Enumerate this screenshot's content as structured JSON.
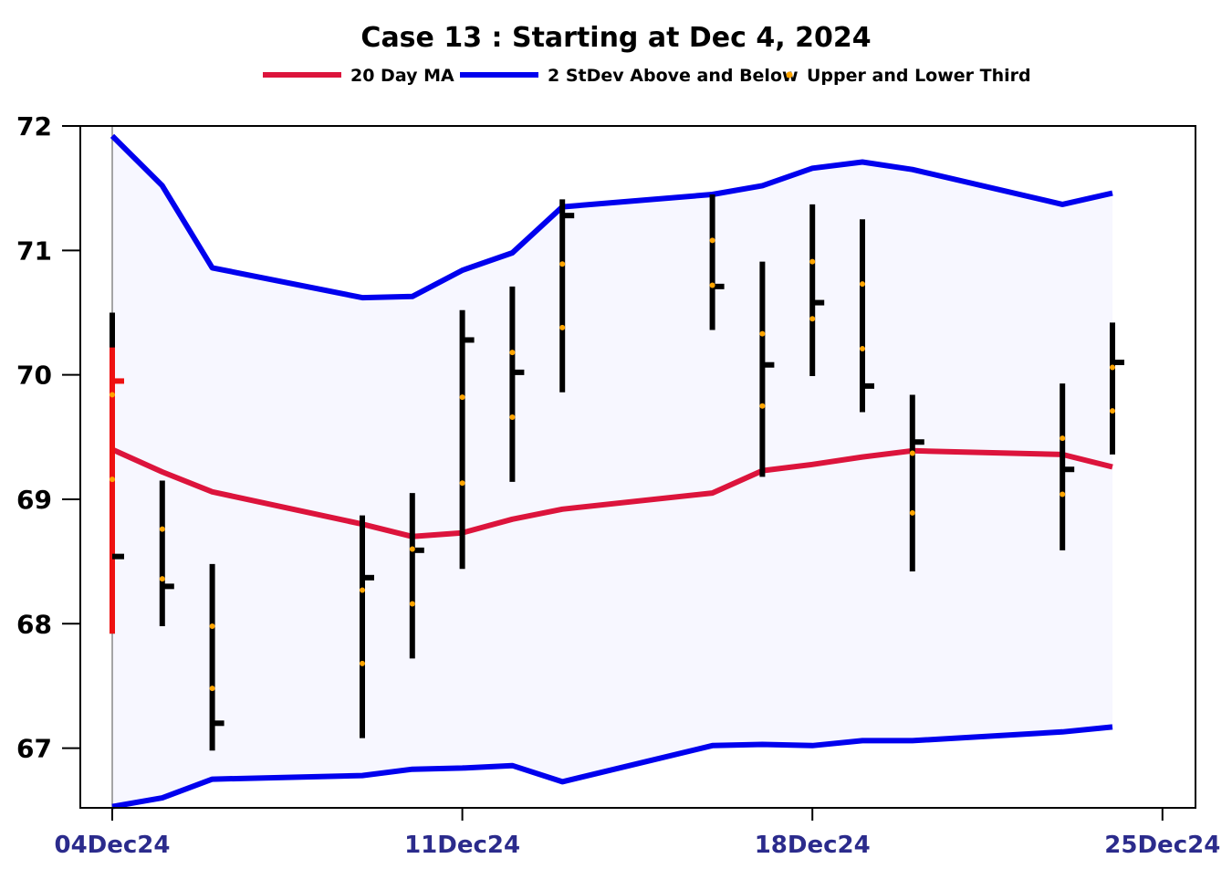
{
  "chart_data": {
    "type": "ohlc",
    "title": "Case 13 :  Starting at  Dec 4, 2024",
    "legend": {
      "placement": "top-center",
      "items": [
        {
          "label": "20 Day MA",
          "color": "#dc143c",
          "kind": "line"
        },
        {
          "label": "2 StDev Above and Below",
          "color": "#0000ee",
          "kind": "line"
        },
        {
          "label": "Upper  and Lower Third",
          "color": "#ffa500",
          "kind": "dot"
        }
      ]
    },
    "ylim": [
      66.52,
      72.0
    ],
    "yticks": [
      67,
      68,
      69,
      70,
      71,
      72
    ],
    "ytick_labels": [
      "67",
      "68",
      "69",
      "70",
      "71",
      "72"
    ],
    "xlim": [
      "2024-12-03T02:00",
      "2024-12-25T00:00"
    ],
    "xticks": [
      "2024-12-04",
      "2024-12-11",
      "2024-12-18",
      "2024-12-25"
    ],
    "xtick_labels": [
      "04Dec24",
      "11Dec24",
      "18Dec24",
      "25Dec24"
    ],
    "grid": false,
    "colors": {
      "ma": "#dc143c",
      "band": "#0000ee",
      "band_fill": "#f7f7ff",
      "bar": "#000000",
      "first_bar": "#ee1111",
      "thirds": "#ffa500",
      "axis": "#000000",
      "xtick_text": "#2b2b8c"
    },
    "bars": [
      {
        "date": "2024-12-04",
        "high": 70.5,
        "low": 67.92,
        "close": 68.54,
        "upper_third": 69.84,
        "lower_third": 69.16
      },
      {
        "date": "2024-12-05",
        "high": 69.15,
        "low": 67.98,
        "close": 68.3,
        "upper_third": 68.76,
        "lower_third": 68.36
      },
      {
        "date": "2024-12-06",
        "high": 68.48,
        "low": 66.98,
        "close": 67.2,
        "upper_third": 67.98,
        "lower_third": 67.48
      },
      {
        "date": "2024-12-09",
        "high": 68.87,
        "low": 67.08,
        "close": 68.37,
        "upper_third": 68.27,
        "lower_third": 67.68
      },
      {
        "date": "2024-12-10",
        "high": 69.05,
        "low": 67.72,
        "close": 68.59,
        "upper_third": 68.6,
        "lower_third": 68.16
      },
      {
        "date": "2024-12-11",
        "high": 70.52,
        "low": 68.44,
        "close": 70.28,
        "upper_third": 69.82,
        "lower_third": 69.13
      },
      {
        "date": "2024-12-12",
        "high": 70.71,
        "low": 69.14,
        "close": 70.02,
        "upper_third": 70.18,
        "lower_third": 69.66
      },
      {
        "date": "2024-12-13",
        "high": 71.41,
        "low": 69.86,
        "close": 71.28,
        "upper_third": 70.89,
        "lower_third": 70.38
      },
      {
        "date": "2024-12-16",
        "high": 71.45,
        "low": 70.36,
        "close": 70.71,
        "upper_third": 71.08,
        "lower_third": 70.72
      },
      {
        "date": "2024-12-17",
        "high": 70.91,
        "low": 69.18,
        "close": 70.08,
        "upper_third": 70.33,
        "lower_third": 69.75
      },
      {
        "date": "2024-12-18",
        "high": 71.37,
        "low": 69.99,
        "close": 70.58,
        "upper_third": 70.91,
        "lower_third": 70.45
      },
      {
        "date": "2024-12-19",
        "high": 71.25,
        "low": 69.7,
        "close": 69.91,
        "upper_third": 70.73,
        "lower_third": 70.21
      },
      {
        "date": "2024-12-20",
        "high": 69.84,
        "low": 68.42,
        "close": 69.46,
        "upper_third": 69.37,
        "lower_third": 68.89
      },
      {
        "date": "2024-12-23",
        "high": 69.93,
        "low": 68.59,
        "close": 69.24,
        "upper_third": 69.49,
        "lower_third": 69.04
      },
      {
        "date": "2024-12-24",
        "high": 70.42,
        "low": 69.36,
        "close": 70.1,
        "upper_third": 70.06,
        "lower_third": 69.71
      }
    ],
    "series": [
      {
        "name": "20 Day MA",
        "values": [
          69.4,
          69.22,
          69.06,
          68.8,
          68.7,
          68.73,
          68.84,
          68.92,
          69.05,
          69.23,
          69.28,
          69.34,
          69.39,
          69.36,
          69.26
        ]
      },
      {
        "name": "2 StDev Above",
        "values": [
          71.92,
          71.52,
          70.86,
          70.62,
          70.63,
          70.84,
          70.98,
          71.35,
          71.45,
          71.52,
          71.66,
          71.71,
          71.65,
          71.37,
          71.46
        ]
      },
      {
        "name": "2 StDev Below",
        "values": [
          66.53,
          66.6,
          66.75,
          66.78,
          66.83,
          66.84,
          66.86,
          66.73,
          67.02,
          67.03,
          67.02,
          67.06,
          67.06,
          67.13,
          67.17
        ]
      }
    ]
  }
}
